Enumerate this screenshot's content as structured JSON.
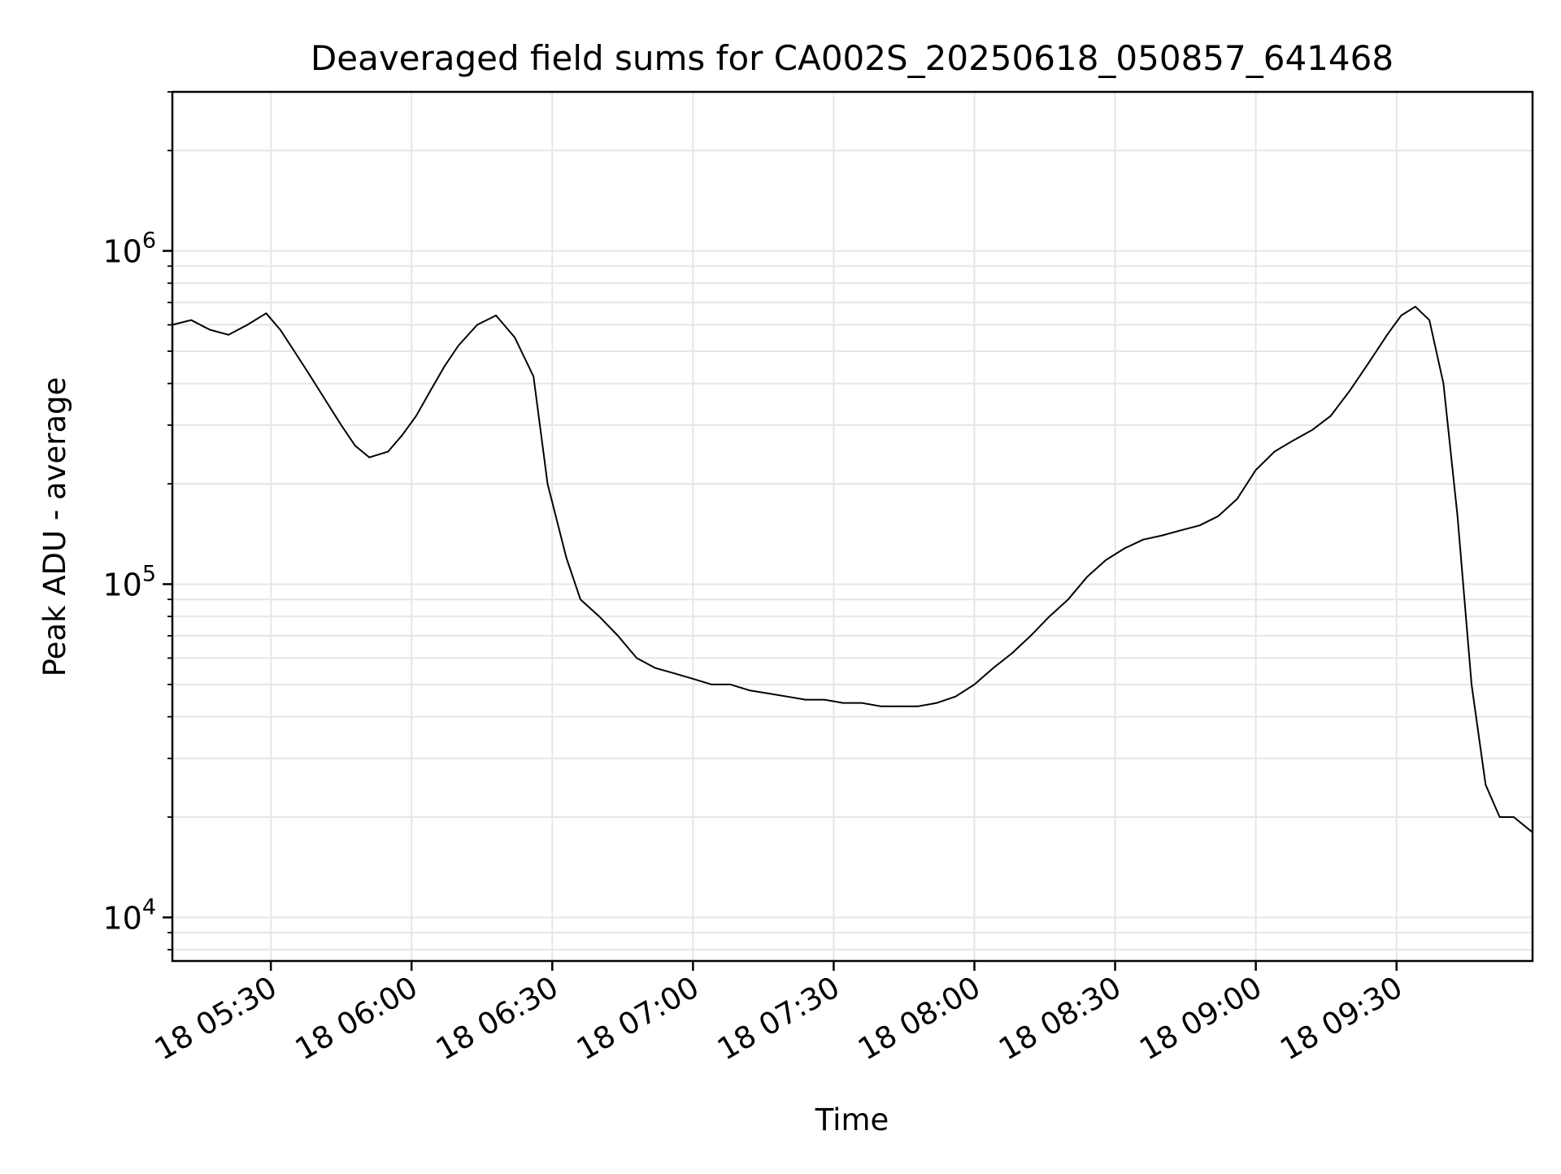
{
  "chart_data": {
    "type": "line",
    "title": "Deaveraged field sums for CA002S_20250618_050857_641468",
    "xlabel": "Time",
    "ylabel": "Peak ADU - average",
    "yscale": "log",
    "grid": true,
    "legend": "none",
    "line_color": "#000000",
    "grid_color": "#e6e6e6",
    "x_range": [
      "18 05:09",
      "18 09:59"
    ],
    "ylim": [
      7400,
      3000000
    ],
    "x_ticks": [
      {
        "time": "18 05:30",
        "label": "18 05:30"
      },
      {
        "time": "18 06:00",
        "label": "18 06:00"
      },
      {
        "time": "18 06:30",
        "label": "18 06:30"
      },
      {
        "time": "18 07:00",
        "label": "18 07:00"
      },
      {
        "time": "18 07:30",
        "label": "18 07:30"
      },
      {
        "time": "18 08:00",
        "label": "18 08:00"
      },
      {
        "time": "18 08:30",
        "label": "18 08:30"
      },
      {
        "time": "18 09:00",
        "label": "18 09:00"
      },
      {
        "time": "18 09:30",
        "label": "18 09:30"
      }
    ],
    "y_ticks": [
      {
        "value": 10000,
        "base": "10",
        "exp": "4"
      },
      {
        "value": 100000,
        "base": "10",
        "exp": "5"
      },
      {
        "value": 1000000,
        "base": "10",
        "exp": "6"
      }
    ],
    "series": [
      {
        "x": [
          "18 05:09",
          "18 05:13",
          "18 05:17",
          "18 05:21",
          "18 05:25",
          "18 05:29",
          "18 05:32",
          "18 05:35",
          "18 05:38",
          "18 05:42",
          "18 05:45",
          "18 05:48",
          "18 05:51",
          "18 05:55",
          "18 05:58",
          "18 06:01",
          "18 06:04",
          "18 06:07",
          "18 06:10",
          "18 06:14",
          "18 06:18",
          "18 06:22",
          "18 06:26",
          "18 06:29",
          "18 06:33",
          "18 06:36",
          "18 06:40",
          "18 06:44",
          "18 06:48",
          "18 06:52",
          "18 06:56",
          "18 07:00",
          "18 07:04",
          "18 07:08",
          "18 07:12",
          "18 07:16",
          "18 07:20",
          "18 07:24",
          "18 07:28",
          "18 07:32",
          "18 07:36",
          "18 07:40",
          "18 07:44",
          "18 07:48",
          "18 07:52",
          "18 07:56",
          "18 08:00",
          "18 08:04",
          "18 08:08",
          "18 08:12",
          "18 08:16",
          "18 08:20",
          "18 08:24",
          "18 08:28",
          "18 08:32",
          "18 08:36",
          "18 08:40",
          "18 08:44",
          "18 08:48",
          "18 08:52",
          "18 08:56",
          "18 09:00",
          "18 09:04",
          "18 09:08",
          "18 09:12",
          "18 09:16",
          "18 09:20",
          "18 09:24",
          "18 09:28",
          "18 09:31",
          "18 09:34",
          "18 09:37",
          "18 09:40",
          "18 09:43",
          "18 09:46",
          "18 09:49",
          "18 09:52",
          "18 09:55",
          "18 09:59"
        ],
        "y": [
          600000,
          620000,
          580000,
          560000,
          600000,
          650000,
          580000,
          500000,
          430000,
          350000,
          300000,
          260000,
          240000,
          250000,
          280000,
          320000,
          380000,
          450000,
          520000,
          600000,
          640000,
          550000,
          420000,
          200000,
          120000,
          90000,
          80000,
          70000,
          60000,
          56000,
          54000,
          52000,
          50000,
          50000,
          48000,
          47000,
          46000,
          45000,
          45000,
          44000,
          44000,
          43000,
          43000,
          43000,
          44000,
          46000,
          50000,
          56000,
          62000,
          70000,
          80000,
          90000,
          105000,
          118000,
          128000,
          136000,
          140000,
          145000,
          150000,
          160000,
          180000,
          220000,
          250000,
          270000,
          290000,
          320000,
          380000,
          460000,
          560000,
          640000,
          680000,
          620000,
          400000,
          160000,
          50000,
          25000,
          20000,
          20000,
          18000
        ]
      }
    ]
  }
}
